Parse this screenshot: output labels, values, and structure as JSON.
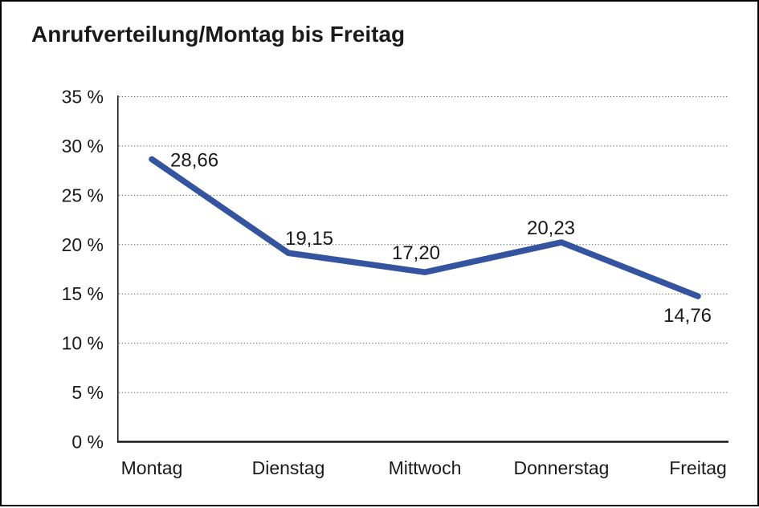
{
  "page": {
    "title": "Anrufverteilung/Montag bis Freitag"
  },
  "chart_data": {
    "type": "line",
    "title": "Anrufverteilung/Montag bis Freitag",
    "categories": [
      "Montag",
      "Dienstag",
      "Mittwoch",
      "Donnerstag",
      "Freitag"
    ],
    "values": [
      28.66,
      19.15,
      17.2,
      20.23,
      14.76
    ],
    "data_labels": [
      "28,66",
      "19,15",
      "17,20",
      "20,23",
      "14,76"
    ],
    "xlabel": "",
    "ylabel": "",
    "ylim": [
      0,
      35
    ],
    "y_tick_step": 5,
    "y_tick_labels": [
      "0 %",
      "5 %",
      "10 %",
      "15 %",
      "20 %",
      "25 %",
      "30 %",
      "35 %"
    ],
    "grid": "horizontal-dotted",
    "legend": "none",
    "line_color": "#35549F",
    "number_format": "decimal-comma"
  },
  "colors": {
    "background": "#ffffff",
    "frame_border": "#000000",
    "gridline": "#555555",
    "axis": "#1a1a1a",
    "text": "#1a1a1a"
  }
}
